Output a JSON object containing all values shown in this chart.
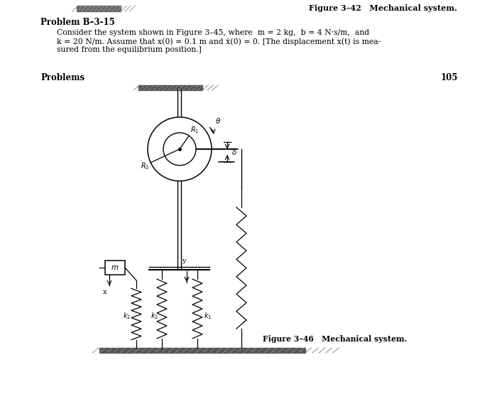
{
  "bg_color": "#ffffff",
  "fig_caption_top": "Figure 3–42   Mechanical system.",
  "problem_title": "Problem B–3-15",
  "problem_text_line1": "Consider the system shown in Figure 3–45, where  m = 2 kg,  b = 4 N·s/m,  and",
  "problem_text_line2": "k = 20 N/m. Assume that x(0) = 0.1 m and ẋ(0) = 0. [The displacement x(t) is mea-",
  "problem_text_line3": "sured from the equilibrium position.]",
  "section_label": "Problems",
  "page_number": "105",
  "fig_caption_bottom": "Figure 3–46   Mechanical system.",
  "line_color": "#000000",
  "text_color": "#000000"
}
